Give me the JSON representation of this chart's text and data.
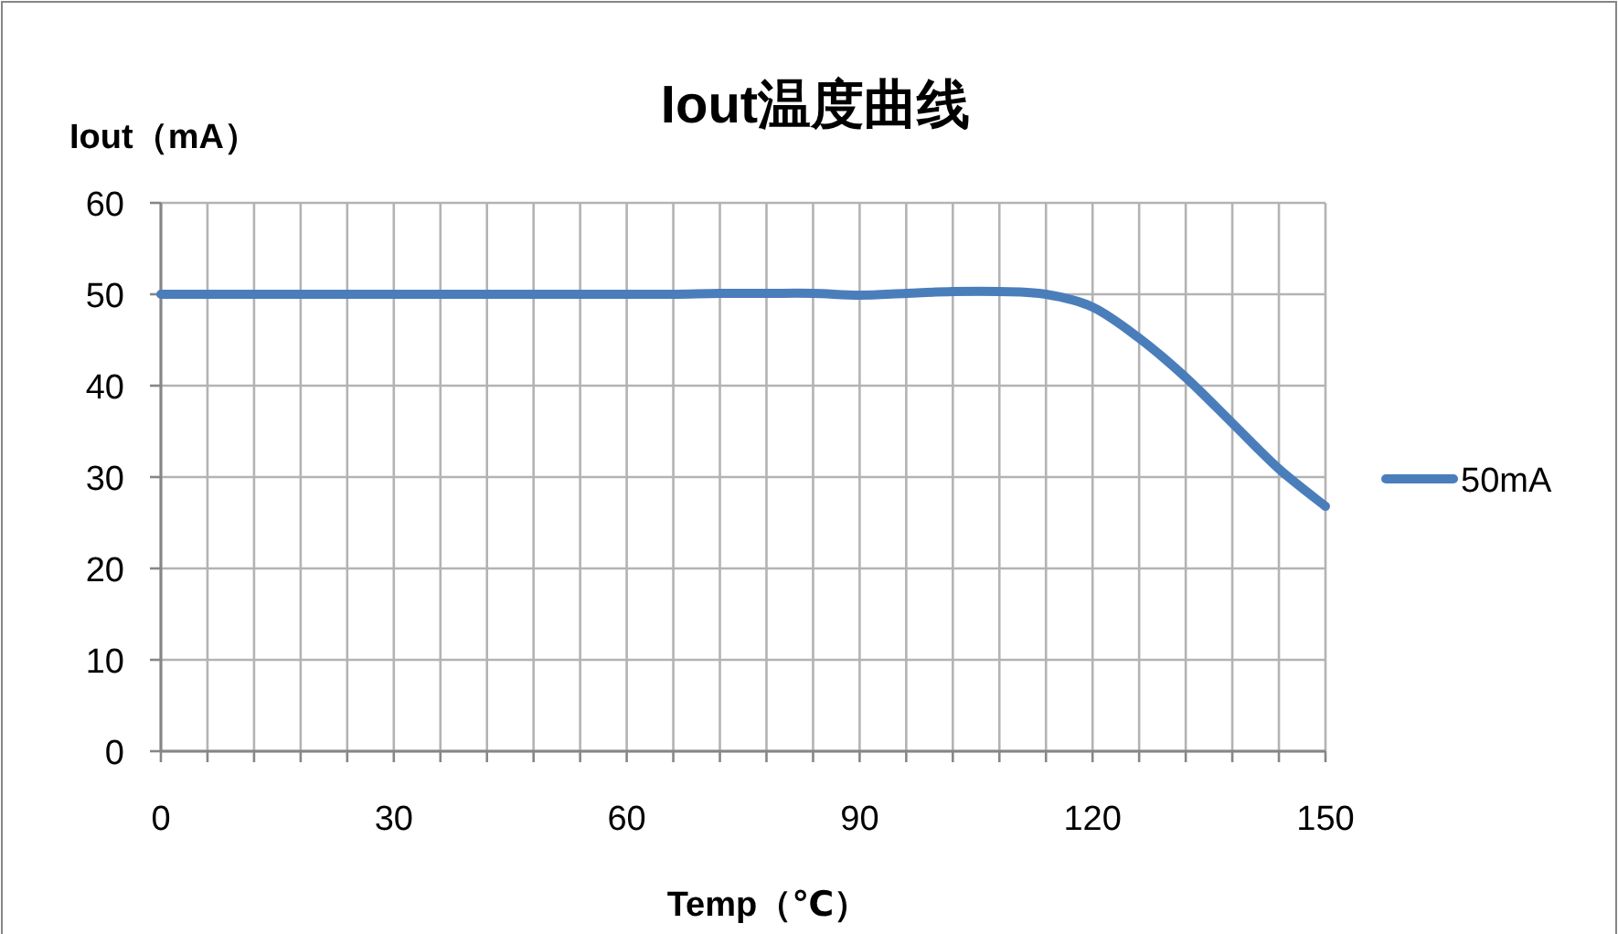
{
  "chart_data": {
    "type": "line",
    "title": "Iout温度曲线",
    "xlabel": "Temp（℃）",
    "ylabel": "Iout（mA）",
    "x": [
      0,
      6,
      12,
      18,
      24,
      30,
      36,
      42,
      48,
      54,
      60,
      66,
      72,
      78,
      84,
      90,
      96,
      102,
      108,
      114,
      120,
      126,
      132,
      138,
      144,
      150
    ],
    "series": [
      {
        "name": "50mA",
        "color": "#4a7ebb",
        "values": [
          50,
          50,
          50,
          50,
          50,
          50,
          50,
          50,
          50,
          50,
          50,
          50,
          50.1,
          50.1,
          50.1,
          49.9,
          50.1,
          50.3,
          50.3,
          50,
          48.6,
          45.2,
          40.9,
          35.9,
          30.9,
          26.8
        ]
      }
    ],
    "xlim": [
      0,
      150
    ],
    "xticks": [
      0,
      {
        "value": 6,
        "label": null
      },
      {
        "value": 12,
        "label": null
      },
      {
        "value": 18,
        "label": null
      },
      {
        "value": 24,
        "label": null
      },
      30,
      {
        "value": 36,
        "label": null
      },
      {
        "value": 42,
        "label": null
      },
      {
        "value": 48,
        "label": null
      },
      {
        "value": 54,
        "label": null
      },
      60,
      {
        "value": 66,
        "label": null
      },
      {
        "value": 72,
        "label": null
      },
      {
        "value": 78,
        "label": null
      },
      {
        "value": 84,
        "label": null
      },
      90,
      {
        "value": 96,
        "label": null
      },
      {
        "value": 102,
        "label": null
      },
      {
        "value": 108,
        "label": null
      },
      {
        "value": 114,
        "label": null
      },
      120,
      {
        "value": 126,
        "label": null
      },
      {
        "value": 132,
        "label": null
      },
      {
        "value": 138,
        "label": null
      },
      {
        "value": 144,
        "label": null
      },
      150
    ],
    "ylim": [
      0,
      60
    ],
    "yticks": [
      0,
      10,
      20,
      30,
      40,
      50,
      60
    ],
    "grid": true,
    "legend": "right",
    "marker": "none",
    "line_style": "solid"
  }
}
